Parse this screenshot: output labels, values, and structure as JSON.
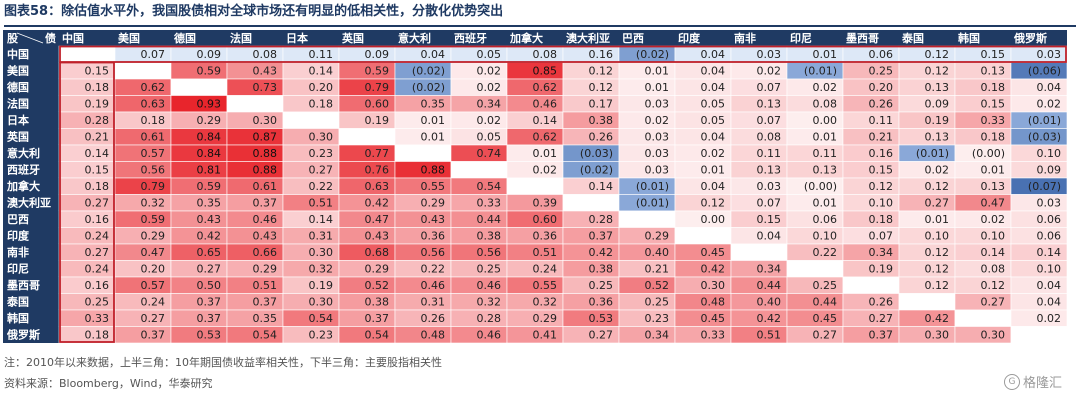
{
  "title": "图表58：除估值水平外，我国股债相对全球市场还有明显的低相关性，分散化优势突出",
  "note": "注：2010年以来数据，上半三角：10年期国债收益率相关性，下半三角：主要股指相关性",
  "source": "资料来源：Bloomberg，Wind，华泰研究",
  "watermark": "格隆汇",
  "colors": {
    "header_bg": "#1f3a63",
    "header_text": "#ffffff",
    "china_row_bg": "#dde8f7",
    "highlight_border": "#c0202a",
    "positive_color": "#e8252c",
    "negative_color": "#1f4e9a"
  },
  "chart_data": {
    "type": "heatmap",
    "corner_label_stock": "股",
    "corner_label_bond": "债",
    "countries": [
      "中国",
      "美国",
      "德国",
      "法国",
      "日本",
      "英国",
      "意大利",
      "西班牙",
      "加拿大",
      "澳大利亚",
      "巴西",
      "印度",
      "南非",
      "印尼",
      "墨西哥",
      "泰国",
      "韩国",
      "俄罗斯"
    ],
    "matrix": [
      [
        null,
        0.07,
        0.09,
        0.08,
        0.11,
        0.09,
        0.04,
        0.05,
        0.08,
        0.16,
        -0.02,
        0.04,
        0.03,
        0.01,
        0.06,
        0.12,
        0.15,
        0.03
      ],
      [
        0.15,
        null,
        0.59,
        0.43,
        0.14,
        0.59,
        -0.02,
        0.02,
        0.85,
        0.12,
        0.01,
        0.04,
        0.02,
        -0.01,
        0.25,
        0.12,
        0.13,
        -0.06
      ],
      [
        0.18,
        0.62,
        null,
        0.73,
        0.2,
        0.79,
        -0.02,
        0.02,
        0.62,
        0.12,
        0.01,
        0.04,
        0.07,
        0.02,
        0.2,
        0.13,
        0.18,
        0.04
      ],
      [
        0.19,
        0.63,
        0.93,
        null,
        0.18,
        0.6,
        0.35,
        0.34,
        0.46,
        0.17,
        0.03,
        0.05,
        0.13,
        0.08,
        0.26,
        0.09,
        0.15,
        0.02
      ],
      [
        0.28,
        0.18,
        0.29,
        0.3,
        null,
        0.19,
        0.01,
        0.02,
        0.14,
        0.38,
        0.02,
        0.05,
        0.07,
        0.0,
        0.11,
        0.19,
        0.33,
        -0.01
      ],
      [
        0.21,
        0.61,
        0.84,
        0.87,
        0.3,
        null,
        0.01,
        0.05,
        0.62,
        0.26,
        0.03,
        0.04,
        0.08,
        0.01,
        0.21,
        0.13,
        0.18,
        -0.03
      ],
      [
        0.14,
        0.57,
        0.84,
        0.88,
        0.23,
        0.77,
        null,
        0.74,
        0.01,
        -0.03,
        0.03,
        0.02,
        0.11,
        0.11,
        0.16,
        -0.01,
        -0.0,
        0.1
      ],
      [
        0.15,
        0.56,
        0.81,
        0.88,
        0.27,
        0.76,
        0.88,
        null,
        0.02,
        -0.02,
        0.03,
        0.01,
        0.13,
        0.13,
        0.15,
        0.02,
        0.01,
        0.09
      ],
      [
        0.18,
        0.79,
        0.59,
        0.61,
        0.22,
        0.63,
        0.55,
        0.54,
        null,
        0.14,
        -0.01,
        0.04,
        0.03,
        -0.0,
        0.12,
        0.12,
        0.13,
        -0.07
      ],
      [
        0.27,
        0.32,
        0.35,
        0.37,
        0.51,
        0.42,
        0.29,
        0.33,
        0.39,
        null,
        -0.01,
        0.12,
        0.07,
        0.01,
        0.1,
        0.27,
        0.47,
        0.03
      ],
      [
        0.16,
        0.59,
        0.43,
        0.46,
        0.14,
        0.47,
        0.43,
        0.44,
        0.6,
        0.28,
        null,
        0.0,
        0.15,
        0.06,
        0.18,
        0.01,
        0.02,
        0.06
      ],
      [
        0.24,
        0.29,
        0.42,
        0.43,
        0.31,
        0.43,
        0.36,
        0.38,
        0.36,
        0.37,
        0.29,
        null,
        0.04,
        0.1,
        0.07,
        0.1,
        0.1,
        0.06
      ],
      [
        0.27,
        0.47,
        0.65,
        0.66,
        0.3,
        0.68,
        0.56,
        0.56,
        0.51,
        0.42,
        0.4,
        0.45,
        null,
        0.22,
        0.34,
        0.12,
        0.14,
        0.14
      ],
      [
        0.24,
        0.2,
        0.27,
        0.29,
        0.32,
        0.29,
        0.22,
        0.25,
        0.24,
        0.38,
        0.21,
        0.42,
        0.34,
        null,
        0.19,
        0.12,
        0.08,
        0.1
      ],
      [
        0.16,
        0.57,
        0.5,
        0.51,
        0.19,
        0.52,
        0.46,
        0.46,
        0.55,
        0.25,
        0.52,
        0.3,
        0.44,
        0.25,
        null,
        0.12,
        0.12,
        0.04
      ],
      [
        0.25,
        0.24,
        0.37,
        0.37,
        0.3,
        0.38,
        0.31,
        0.32,
        0.32,
        0.36,
        0.25,
        0.48,
        0.4,
        0.44,
        0.26,
        null,
        0.27,
        0.04
      ],
      [
        0.33,
        0.27,
        0.37,
        0.35,
        0.54,
        0.37,
        0.26,
        0.28,
        0.29,
        0.53,
        0.23,
        0.45,
        0.42,
        0.45,
        0.27,
        0.42,
        null,
        0.02
      ],
      [
        0.18,
        0.37,
        0.53,
        0.54,
        0.23,
        0.54,
        0.48,
        0.46,
        0.41,
        0.27,
        0.34,
        0.33,
        0.51,
        0.27,
        0.37,
        0.3,
        0.3,
        null
      ]
    ],
    "negative_format": "parentheses",
    "decimals": 2
  }
}
